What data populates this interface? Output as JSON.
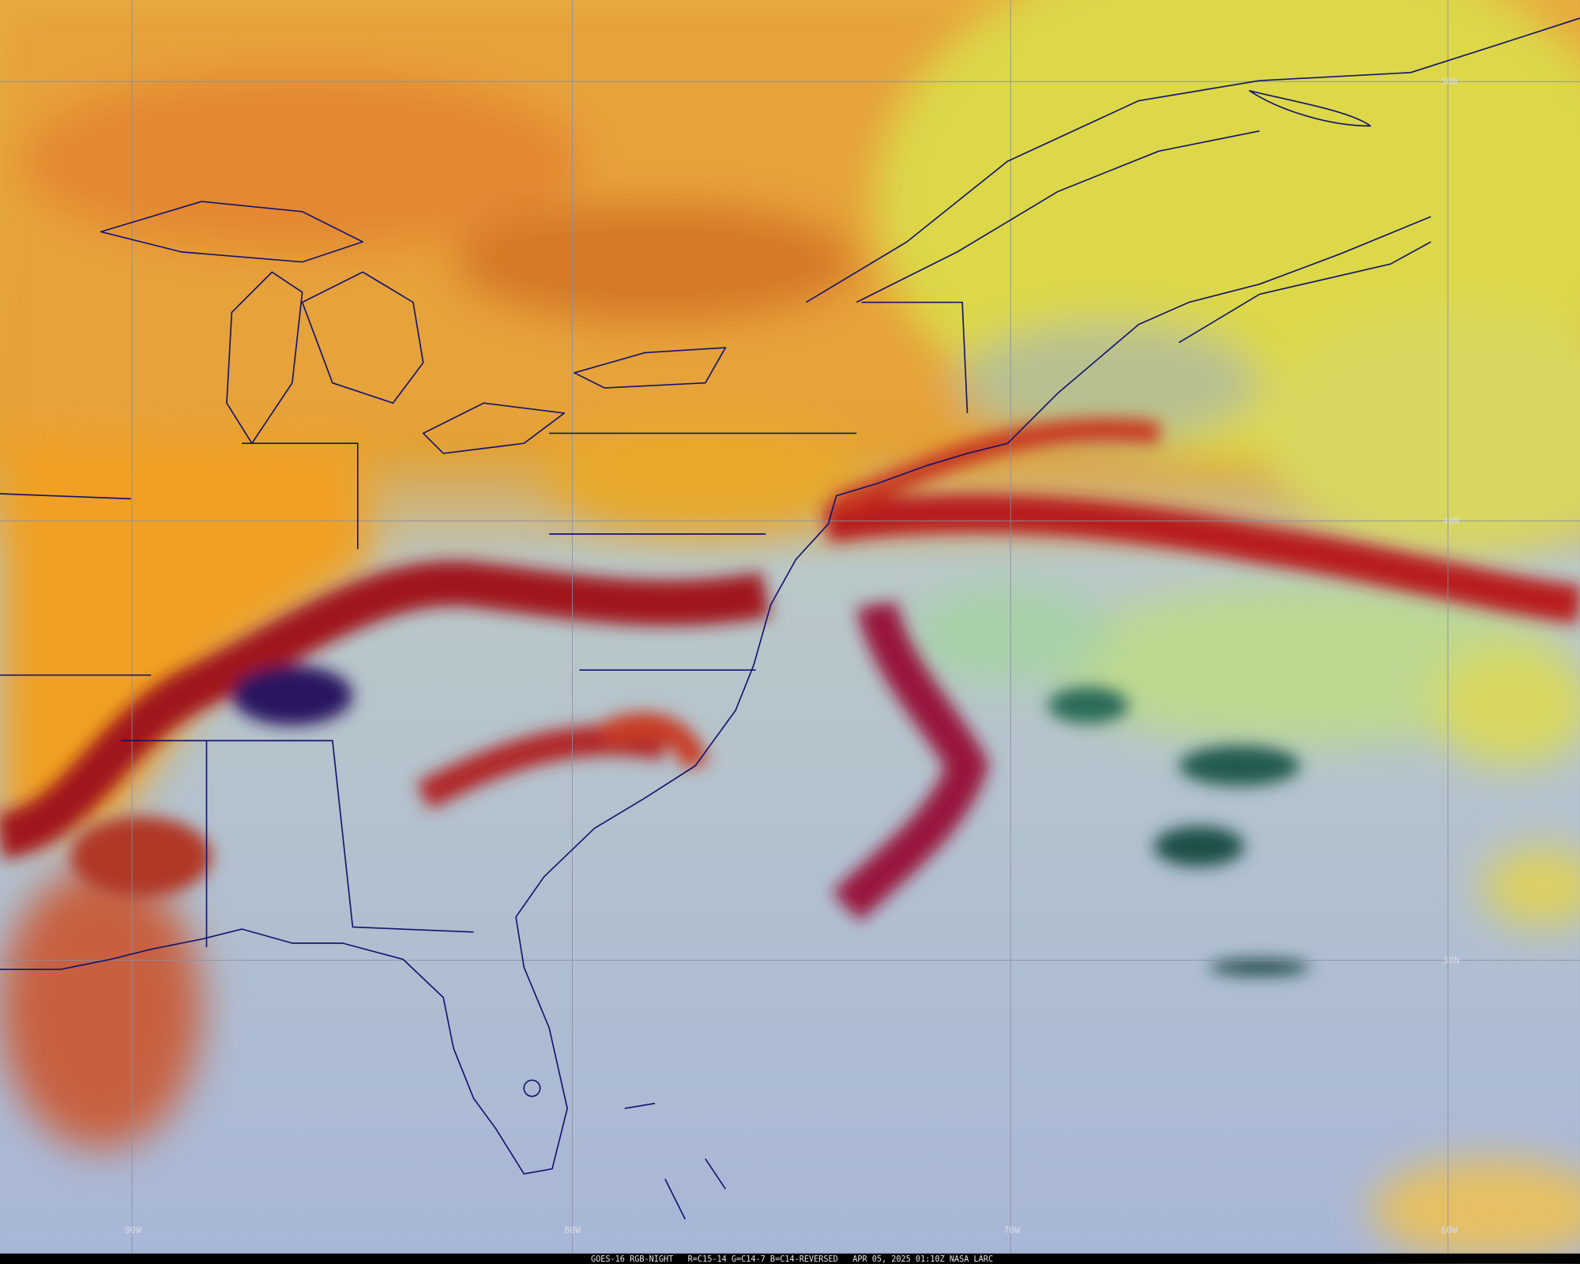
{
  "grid_labels": {
    "latitude": [
      "50N",
      "40N",
      "30N"
    ],
    "longitude": [
      "90W",
      "80W",
      "70W",
      "60W"
    ]
  },
  "footer": "GOES-16 RGB-NIGHT   R=C15-14 G=C14-7 B=C14-REVERSED   APR 05, 2025 01:10Z NASA LARC"
}
